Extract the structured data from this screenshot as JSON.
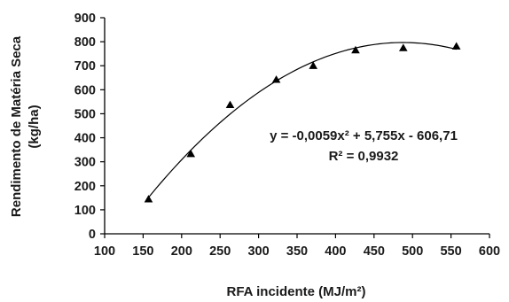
{
  "chart_data": {
    "type": "scatter",
    "title": "",
    "xlabel": "RFA incidente (MJ/m²)",
    "ylabel_line1": "Rendimento de Matéria Seca",
    "ylabel_line2": "(kg/ha)",
    "xlim": [
      100,
      600
    ],
    "ylim": [
      0,
      900
    ],
    "xticks": [
      100,
      150,
      200,
      250,
      300,
      350,
      400,
      450,
      500,
      550,
      600
    ],
    "yticks": [
      0,
      100,
      200,
      300,
      400,
      500,
      600,
      700,
      800,
      900
    ],
    "grid": false,
    "marker": "triangle",
    "series": [
      {
        "x": [
          157,
          212,
          263,
          323,
          371,
          426,
          488,
          557
        ],
        "y": [
          144,
          333,
          537,
          642,
          700,
          765,
          774,
          781
        ]
      }
    ],
    "trendline": {
      "type": "polynomial",
      "coefficients": [
        -0.0059,
        5.755,
        -606.71
      ],
      "x_range": [
        157,
        557
      ]
    },
    "annotations": {
      "equation": "y = -0,0059x² + 5,755x - 606,71",
      "r_squared": "R² = 0,9932"
    },
    "colors": {
      "marker": "#000000",
      "line": "#000000",
      "axis": "#000000",
      "text": "#1a1a1a"
    }
  }
}
